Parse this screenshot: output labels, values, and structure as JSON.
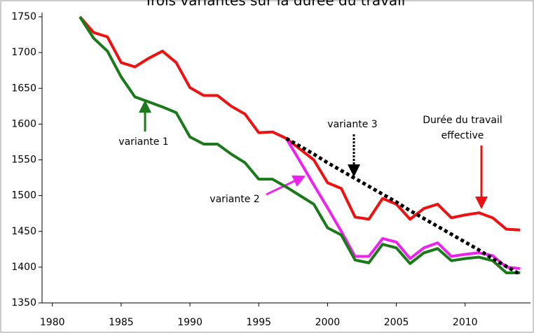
{
  "chart_data": {
    "type": "line",
    "title": "Trois variantes sur la durée du travail",
    "x": [
      1982,
      1983,
      1984,
      1985,
      1986,
      1987,
      1988,
      1989,
      1990,
      1991,
      1992,
      1993,
      1994,
      1995,
      1996,
      1997,
      1998,
      1999,
      2000,
      2001,
      2002,
      2003,
      2004,
      2005,
      2006,
      2007,
      2008,
      2009,
      2010,
      2011,
      2012,
      2013,
      2014
    ],
    "series": [
      {
        "color": "#ee1111",
        "style": "solid",
        "values": [
          1750,
          1728,
          1722,
          1686,
          1680,
          1692,
          1702,
          1686,
          1651,
          1640,
          1640,
          1625,
          1614,
          1588,
          1589,
          1580,
          1565,
          1550,
          1518,
          1510,
          1470,
          1467,
          1496,
          1488,
          1467,
          1482,
          1488,
          1469,
          1473,
          1476,
          1469,
          1453,
          1452
        ]
      },
      {
        "color": "#ee22ee",
        "style": "solid",
        "values": [
          null,
          null,
          null,
          null,
          null,
          null,
          null,
          null,
          null,
          null,
          null,
          null,
          null,
          null,
          null,
          1580,
          1548,
          1515,
          1483,
          1450,
          1415,
          1415,
          1440,
          1435,
          1412,
          1427,
          1434,
          1415,
          1418,
          1420,
          1416,
          1400,
          1398
        ]
      },
      {
        "color": "#1a7a1a",
        "style": "solid",
        "values": [
          1750,
          1720,
          1702,
          1666,
          1638,
          1631,
          1624,
          1616,
          1582,
          1572,
          1572,
          1558,
          1546,
          1523,
          1523,
          1512,
          1500,
          1488,
          1455,
          1445,
          1410,
          1406,
          1432,
          1427,
          1405,
          1420,
          1426,
          1409,
          1412,
          1414,
          1409,
          1392,
          1392
        ]
      },
      {
        "color": "#000000",
        "style": "dotted",
        "values": [
          null,
          null,
          null,
          null,
          null,
          null,
          null,
          null,
          null,
          null,
          null,
          null,
          null,
          null,
          null,
          1580,
          1569,
          1558,
          1546,
          1535,
          1524,
          1513,
          1502,
          1491,
          1479,
          1468,
          1457,
          1446,
          1435,
          1424,
          1412,
          1401,
          1390
        ]
      }
    ],
    "annotations": [
      {
        "lines": [
          "variante 1"
        ],
        "color": "#1a7a1a"
      },
      {
        "lines": [
          "variante 2"
        ],
        "color": "#ee22ee"
      },
      {
        "lines": [
          "variante 3"
        ],
        "color": "#000000"
      },
      {
        "lines": [
          "Durée du travail",
          "effective"
        ],
        "color": "#ee1111"
      }
    ],
    "xlim": [
      1979.25,
      2014.75
    ],
    "xticks": [
      1980,
      1985,
      1990,
      1995,
      2000,
      2005,
      2010
    ],
    "ylim": [
      1350,
      1750
    ],
    "yticks": [
      1350,
      1400,
      1450,
      1500,
      1550,
      1600,
      1650,
      1700,
      1750
    ],
    "grid": false
  }
}
